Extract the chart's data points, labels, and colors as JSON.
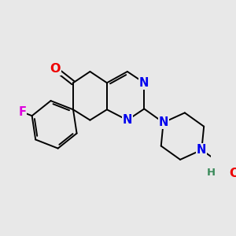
{
  "bg_color": "#e8e8e8",
  "bond_color": "#000000",
  "bond_width": 1.4,
  "atom_colors": {
    "N": "#0000ee",
    "O": "#ee0000",
    "F": "#dd00dd",
    "H": "#3a8a5a",
    "C": "#000000"
  },
  "font_size": 10.5,
  "fig_bg": "#e8e8e8"
}
